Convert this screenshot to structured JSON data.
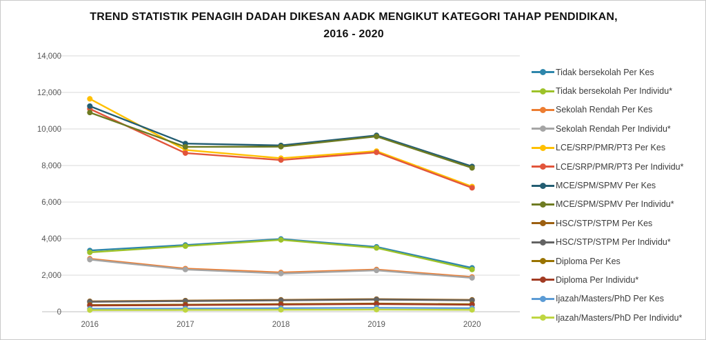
{
  "chart": {
    "title_line1": "TREND STATISTIK PENAGIH DADAH DIKESAN AADK MENGIKUT KATEGORI TAHAP PENDIDIKAN,",
    "title_line2": "2016 - 2020"
  },
  "colors": {
    "grid": "#d9d9d9",
    "axis_line": "#bfbfbf",
    "tick_text": "#595959",
    "title_text": "#111111",
    "legend_text": "#3b3b3b"
  },
  "chart_data": {
    "type": "line",
    "title": "TREND STATISTIK PENAGIH DADAH DIKESAN AADK MENGIKUT KATEGORI TAHAP PENDIDIKAN, 2016 - 2020",
    "x": [
      "2016",
      "2017",
      "2018",
      "2019",
      "2020"
    ],
    "xlabel": "",
    "ylabel": "",
    "ylim": [
      0,
      14000
    ],
    "ytick_step": 2000,
    "ytick_labels": [
      "0",
      "2,000",
      "4,000",
      "6,000",
      "8,000",
      "10,000",
      "12,000",
      "14,000"
    ],
    "grid": true,
    "legend_position": "right",
    "marker": "circle",
    "series": [
      {
        "name": "Tidak bersekolah Per Kes",
        "color": "#2e86ab",
        "values": [
          3350,
          3650,
          3980,
          3550,
          2400
        ]
      },
      {
        "name": "Tidak bersekolah Per Individu*",
        "color": "#9dc229",
        "values": [
          3250,
          3590,
          3930,
          3490,
          2310
        ]
      },
      {
        "name": "Sekolah Rendah Per Kes",
        "color": "#ed7d31",
        "values": [
          2900,
          2360,
          2150,
          2310,
          1900
        ]
      },
      {
        "name": "Sekolah Rendah Per Individu*",
        "color": "#a5a5a5",
        "values": [
          2850,
          2310,
          2090,
          2260,
          1850
        ]
      },
      {
        "name": "LCE/SRP/PMR/PT3 Per Kes",
        "color": "#ffc000",
        "values": [
          11650,
          8850,
          8400,
          8790,
          6850
        ]
      },
      {
        "name": "LCE/SRP/PMR/PT3 Per Individu*",
        "color": "#e2553b",
        "values": [
          11100,
          8680,
          8300,
          8720,
          6780
        ]
      },
      {
        "name": "MCE/SPM/SPMV Per Kes",
        "color": "#235d72",
        "values": [
          11250,
          9200,
          9100,
          9650,
          7950
        ]
      },
      {
        "name": "MCE/SPM/SPMV Per Individu*",
        "color": "#6e7b22",
        "values": [
          10900,
          9020,
          9030,
          9590,
          7870
        ]
      },
      {
        "name": "HSC/STP/STPM Per Kes",
        "color": "#9c5f10",
        "values": [
          570,
          610,
          650,
          690,
          650
        ]
      },
      {
        "name": "HSC/STP/STPM Per Individu*",
        "color": "#636363",
        "values": [
          540,
          580,
          620,
          660,
          620
        ]
      },
      {
        "name": "Diploma Per Kes",
        "color": "#997300",
        "values": [
          370,
          390,
          420,
          450,
          410
        ]
      },
      {
        "name": "Diploma Per Individu*",
        "color": "#a23b23",
        "values": [
          340,
          360,
          390,
          420,
          380
        ]
      },
      {
        "name": "Ijazah/Masters/PhD Per Kes",
        "color": "#5b9bd5",
        "values": [
          160,
          175,
          195,
          215,
          195
        ]
      },
      {
        "name": "Ijazah/Masters/PhD Per Individu*",
        "color": "#bfd641",
        "values": [
          90,
          95,
          105,
          115,
          100
        ]
      }
    ]
  }
}
